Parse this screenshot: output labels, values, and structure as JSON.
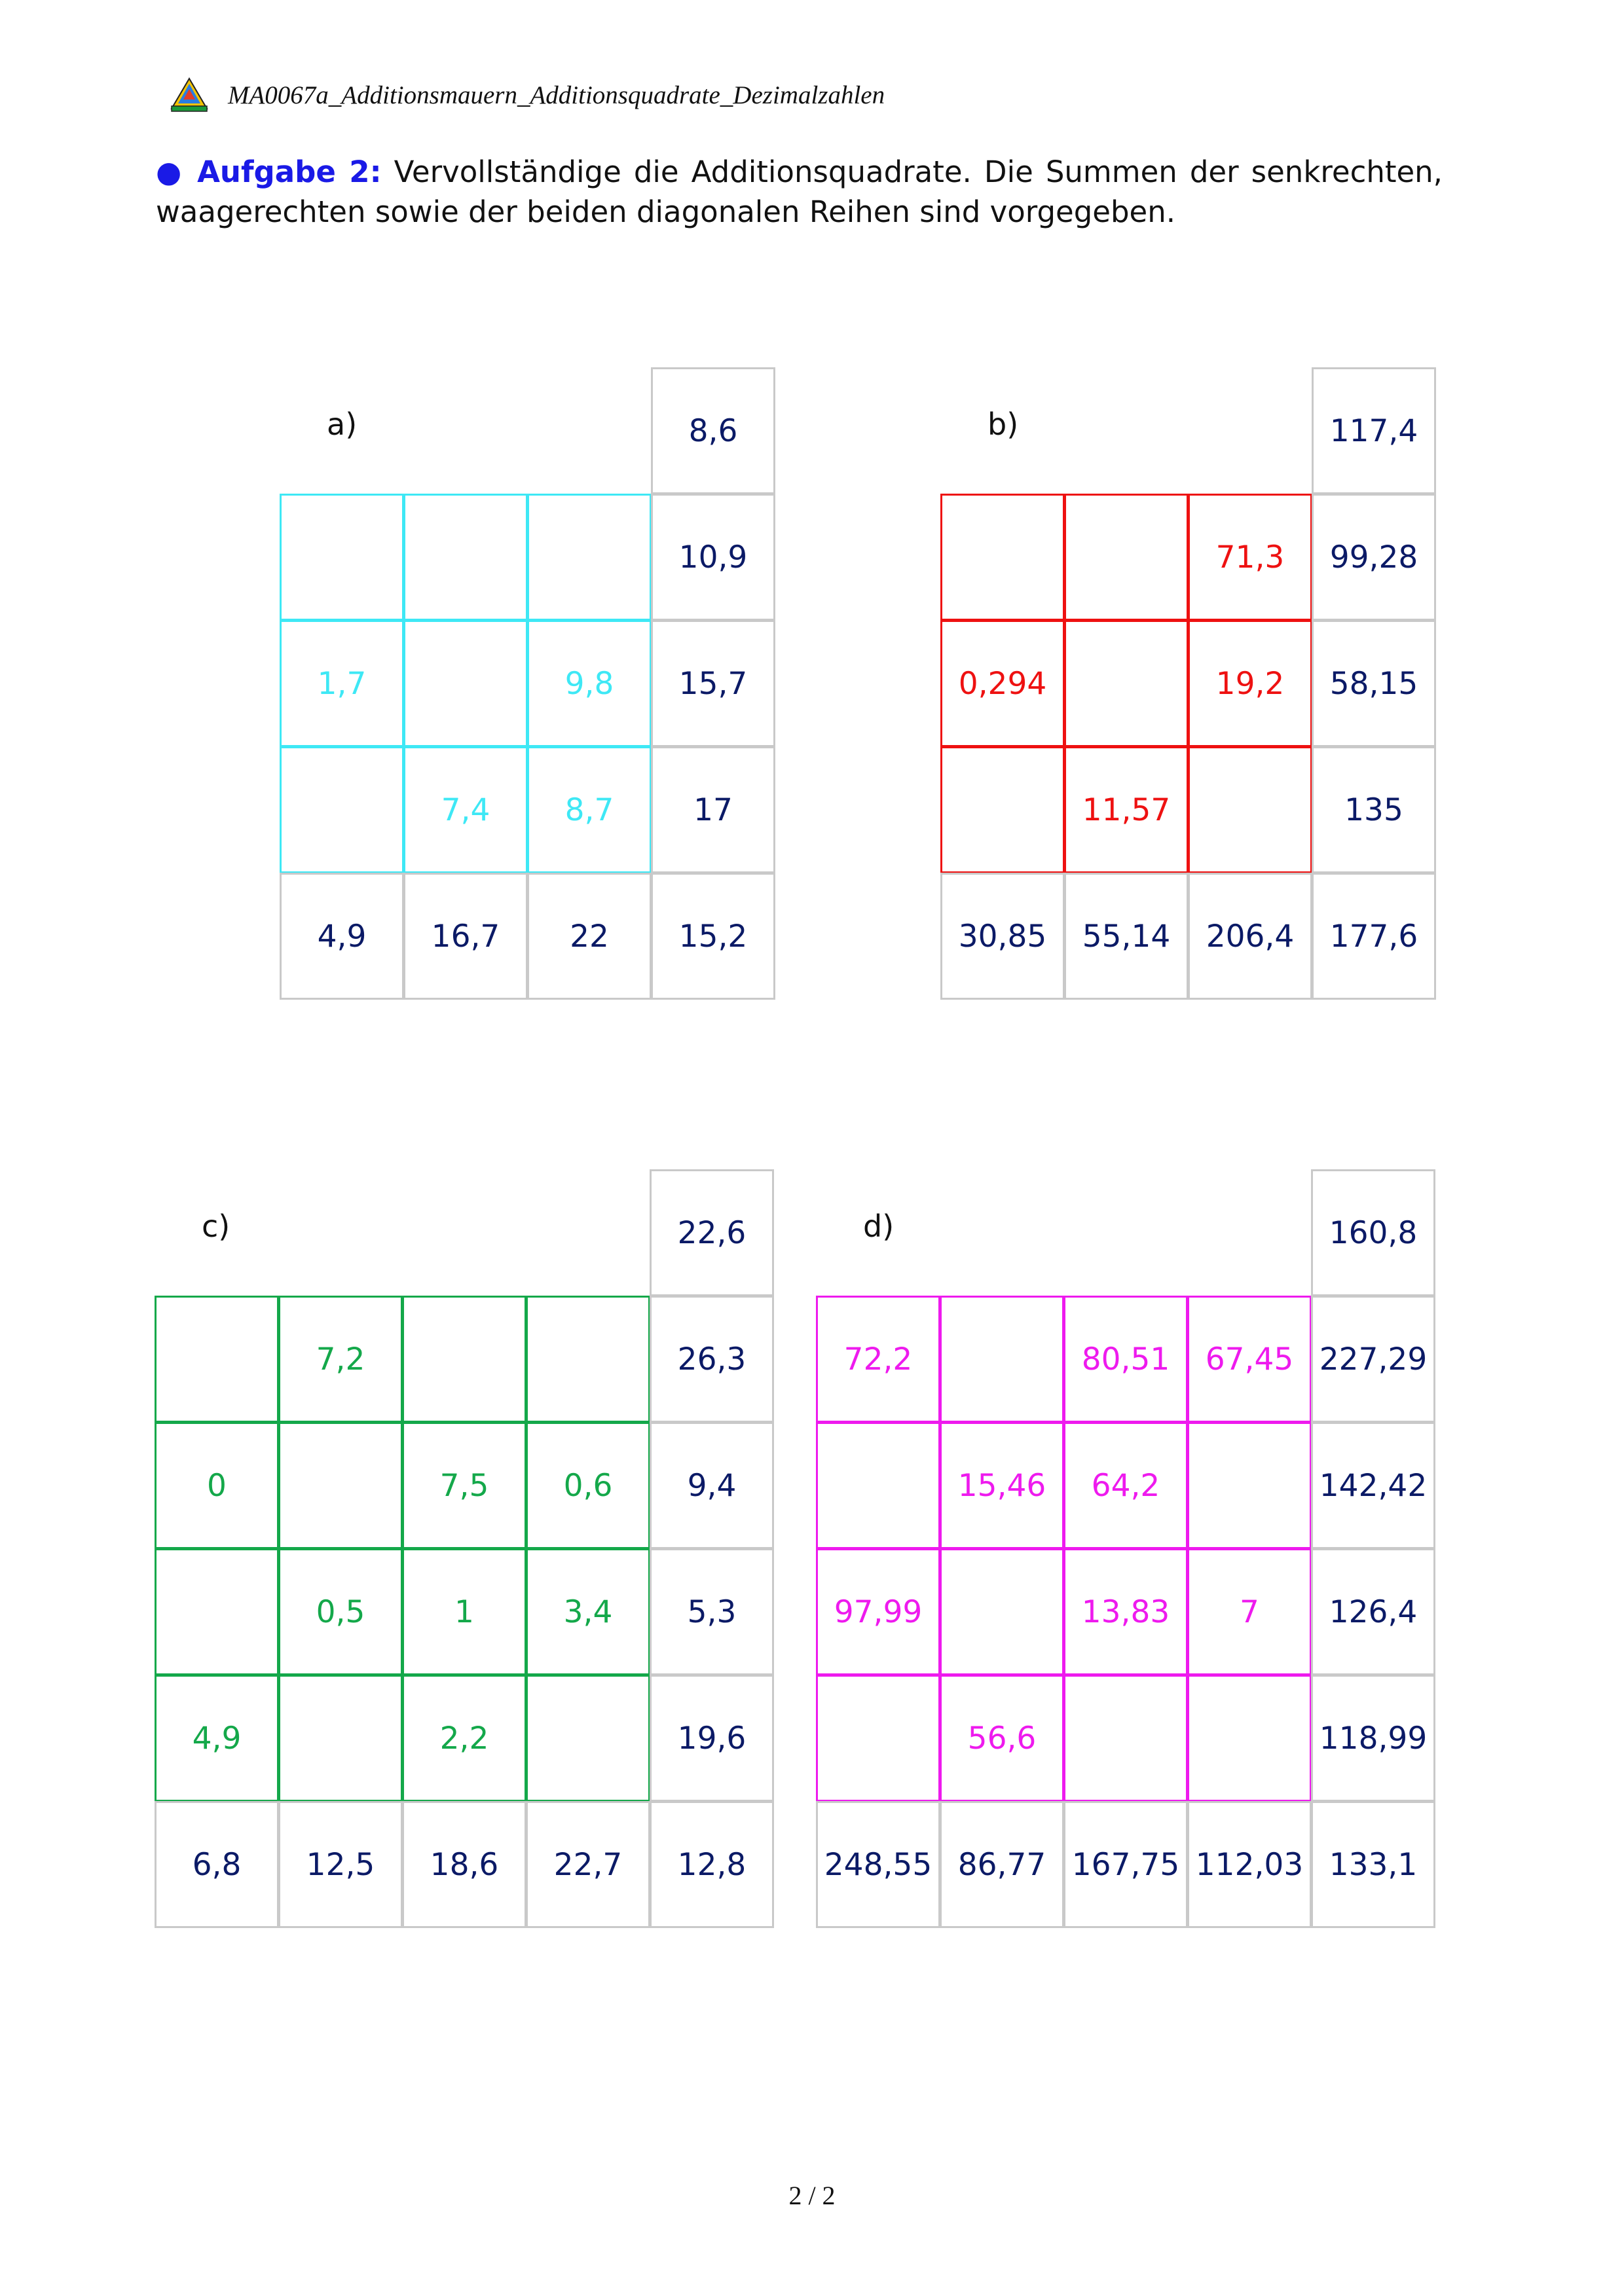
{
  "header": {
    "title": "MA0067a_Additionsmauern_Additionsquadrate_Dezimalzahlen"
  },
  "task": {
    "bullet": "●",
    "label": "Aufgabe 2:",
    "text": " Vervollständige die Additionsquadrate. Die Summen der senkrechten, waagerechten sowie der beiden diagonalen Reihen sind vorgegeben."
  },
  "puzzles": {
    "a": {
      "label": "a)",
      "color": "#3ee8f5",
      "diag_top": "8,6",
      "rows": [
        {
          "cells": [
            "",
            "",
            ""
          ],
          "sum": "10,9"
        },
        {
          "cells": [
            "1,7",
            "",
            "9,8"
          ],
          "sum": "15,7"
        },
        {
          "cells": [
            "",
            "7,4",
            "8,7"
          ],
          "sum": "17"
        }
      ],
      "col_sums": [
        "4,9",
        "16,7",
        "22"
      ],
      "diag_bottom": "15,2"
    },
    "b": {
      "label": "b)",
      "color": "#ee1111",
      "diag_top": "117,4",
      "rows": [
        {
          "cells": [
            "",
            "",
            "71,3"
          ],
          "sum": "99,28"
        },
        {
          "cells": [
            "0,294",
            "",
            "19,2"
          ],
          "sum": "58,15"
        },
        {
          "cells": [
            "",
            "11,57",
            ""
          ],
          "sum": "135"
        }
      ],
      "col_sums": [
        "30,85",
        "55,14",
        "206,4"
      ],
      "diag_bottom": "177,6"
    },
    "c": {
      "label": "c)",
      "color": "#14a84a",
      "diag_top": "22,6",
      "rows": [
        {
          "cells": [
            "",
            "7,2",
            "",
            ""
          ],
          "sum": "26,3"
        },
        {
          "cells": [
            "0",
            "",
            "7,5",
            "0,6"
          ],
          "sum": "9,4"
        },
        {
          "cells": [
            "",
            "0,5",
            "1",
            "3,4"
          ],
          "sum": "5,3"
        },
        {
          "cells": [
            "4,9",
            "",
            "2,2",
            ""
          ],
          "sum": "19,6"
        }
      ],
      "col_sums": [
        "6,8",
        "12,5",
        "18,6",
        "22,7"
      ],
      "diag_bottom": "12,8"
    },
    "d": {
      "label": "d)",
      "color": "#ee1aee",
      "diag_top": "160,8",
      "rows": [
        {
          "cells": [
            "72,2",
            "",
            "80,51",
            "67,45"
          ],
          "sum": "227,29"
        },
        {
          "cells": [
            "",
            "15,46",
            "64,2",
            ""
          ],
          "sum": "142,42"
        },
        {
          "cells": [
            "97,99",
            "",
            "13,83",
            "7"
          ],
          "sum": "126,4"
        },
        {
          "cells": [
            "",
            "56,6",
            "",
            ""
          ],
          "sum": "118,99"
        }
      ],
      "col_sums": [
        "248,55",
        "86,77",
        "167,75",
        "112,03"
      ],
      "diag_bottom": "133,1"
    }
  },
  "footer": {
    "page": "2 / 2"
  }
}
